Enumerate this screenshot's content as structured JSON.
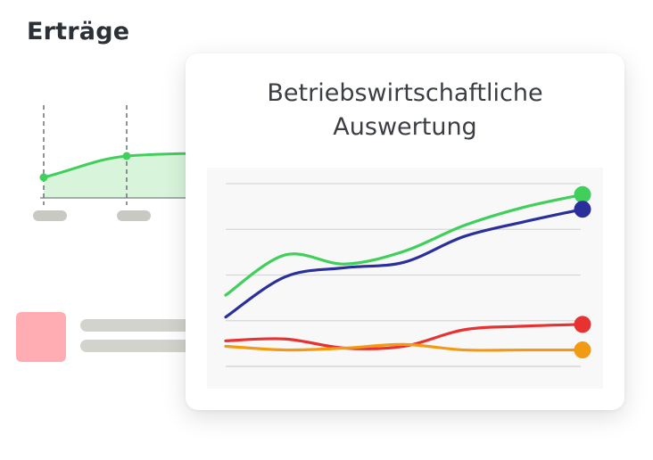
{
  "background": {
    "title": "Erträge",
    "colors": {
      "line": "#3fcf5a",
      "fill": "#d8f5dc",
      "tag": "#c9c9c3",
      "square": "#ffadb2"
    }
  },
  "card": {
    "title_line1": "Betriebswirtschaftliche",
    "title_line2": "Auswertung"
  },
  "chart_data": {
    "type": "line",
    "title": "Betriebswirtschaftliche Auswertung",
    "x": [
      0,
      1,
      2,
      3,
      4,
      5,
      6
    ],
    "ylim": [
      0,
      100
    ],
    "grid": true,
    "series": [
      {
        "color": "#3fcf5a",
        "values": [
          39,
          61,
          56,
          63,
          77,
          87,
          94
        ]
      },
      {
        "color": "#2a2f9c",
        "values": [
          27,
          49,
          54,
          57,
          71,
          79,
          86
        ]
      },
      {
        "color": "#e83232",
        "values": [
          14,
          15,
          10,
          11,
          20,
          22,
          23
        ]
      },
      {
        "color": "#f39a14",
        "values": [
          11,
          9,
          10,
          12,
          9,
          9,
          9
        ]
      }
    ],
    "end_markers": true
  }
}
